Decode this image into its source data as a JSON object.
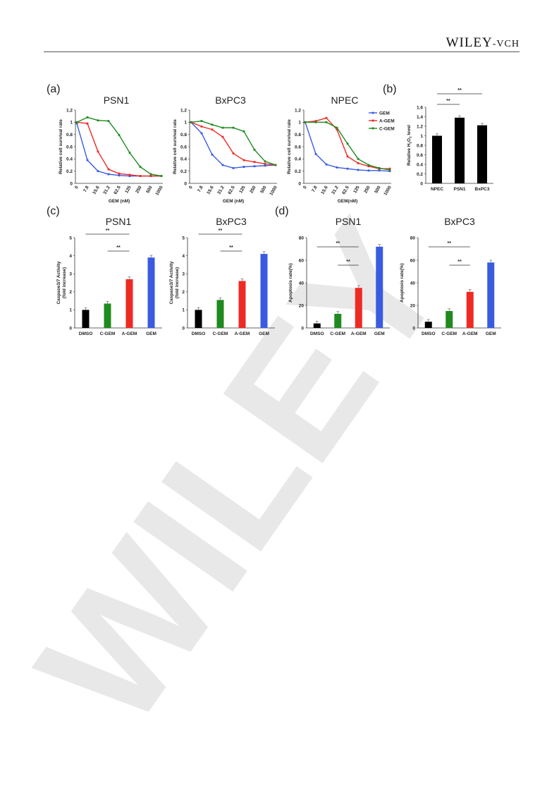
{
  "header": {
    "logo_main": "WILEY",
    "logo_suffix": "-VCH"
  },
  "panels": [
    {
      "letter": "(a)"
    },
    {
      "letter": "(b)"
    },
    {
      "letter": "(c)"
    },
    {
      "letter": "(d)"
    }
  ],
  "colors": {
    "GEM": "#3a5be0",
    "A-GEM": "#ee2a24",
    "C-GEM": "#1f8a1f",
    "DMSO": "#000000",
    "NPEC": "#000000"
  },
  "chart_data": [
    {
      "id": "a1",
      "type": "line",
      "title": "PSN1",
      "xlabel": "GEM (nM)",
      "ylabel": "Relative cell survival rate",
      "categories": [
        "0",
        "7.8",
        "15.6",
        "31.2",
        "62.5",
        "125",
        "250",
        "500",
        "1000"
      ],
      "ylim": [
        0,
        1.2
      ],
      "yticks": [
        "0",
        "0.2",
        "0.4",
        "0.6",
        "0.8",
        "1",
        "1.2"
      ],
      "series": [
        {
          "name": "GEM",
          "values": [
            0.98,
            0.38,
            0.2,
            0.15,
            0.13,
            0.12,
            0.12,
            0.12,
            0.12
          ]
        },
        {
          "name": "A-GEM",
          "values": [
            1.0,
            0.98,
            0.52,
            0.23,
            0.16,
            0.14,
            0.12,
            0.12,
            0.12
          ]
        },
        {
          "name": "C-GEM",
          "values": [
            1.0,
            1.08,
            1.03,
            1.02,
            0.79,
            0.5,
            0.27,
            0.15,
            0.12
          ]
        }
      ]
    },
    {
      "id": "a2",
      "type": "line",
      "title": "BxPC3",
      "xlabel": "GEM (nM)",
      "ylabel": "Relative cell survival rate",
      "categories": [
        "0",
        "7.8",
        "15.6",
        "31.2",
        "62.5",
        "125",
        "250",
        "500",
        "1000"
      ],
      "ylim": [
        0,
        1.2
      ],
      "yticks": [
        "0",
        "0.2",
        "0.4",
        "0.6",
        "0.8",
        "1",
        "1.2"
      ],
      "series": [
        {
          "name": "GEM",
          "values": [
            1.0,
            0.82,
            0.47,
            0.3,
            0.25,
            0.27,
            0.28,
            0.29,
            0.3
          ]
        },
        {
          "name": "A-GEM",
          "values": [
            1.0,
            0.93,
            0.88,
            0.76,
            0.49,
            0.38,
            0.35,
            0.32,
            0.3
          ]
        },
        {
          "name": "C-GEM",
          "values": [
            1.0,
            1.02,
            0.96,
            0.91,
            0.91,
            0.85,
            0.55,
            0.36,
            0.3
          ]
        }
      ]
    },
    {
      "id": "a3",
      "type": "line",
      "title": "NPEC",
      "xlabel": "GEM(nM)",
      "ylabel": "Relative cell survival rate",
      "categories": [
        "0",
        "7.8",
        "15.6",
        "31.2",
        "62.5",
        "125",
        "250",
        "500",
        "1000"
      ],
      "ylim": [
        0,
        1.2
      ],
      "yticks": [
        "0",
        "0.2",
        "0.4",
        "0.6",
        "0.8",
        "1",
        "1.2"
      ],
      "legend": "top-right",
      "series": [
        {
          "name": "GEM",
          "values": [
            1.0,
            0.48,
            0.31,
            0.26,
            0.24,
            0.22,
            0.21,
            0.21,
            0.2
          ]
        },
        {
          "name": "A-GEM",
          "values": [
            1.0,
            1.02,
            1.07,
            0.88,
            0.44,
            0.33,
            0.28,
            0.24,
            0.24
          ]
        },
        {
          "name": "C-GEM",
          "values": [
            1.0,
            1.0,
            1.0,
            0.91,
            0.65,
            0.4,
            0.3,
            0.25,
            0.22
          ]
        }
      ]
    },
    {
      "id": "b",
      "type": "bar",
      "title": "",
      "xlabel": "",
      "ylabel": "Relative H₂O₂ level",
      "categories": [
        "NPEC",
        "PSN1",
        "BxPC3"
      ],
      "values": [
        1.0,
        1.38,
        1.22
      ],
      "ylim": [
        0,
        1.6
      ],
      "yticks": [
        "0",
        "0.2",
        "0.4",
        "0.6",
        "0.8",
        "1",
        "1.2",
        "1.4",
        "1.6"
      ],
      "significance": [
        {
          "between": [
            "NPEC",
            "BxPC3"
          ],
          "label": "**"
        },
        {
          "between": [
            "NPEC",
            "PSN1"
          ],
          "label": "**"
        }
      ]
    },
    {
      "id": "c1",
      "type": "bar",
      "title": "PSN1",
      "xlabel": "",
      "ylabel": "Caspase3/7 Activity",
      "ylabel2": "(fold increase)",
      "categories": [
        "DMSO",
        "C-GEM",
        "A-GEM",
        "GEM"
      ],
      "values": [
        1.0,
        1.35,
        2.7,
        3.9
      ],
      "ylim": [
        0,
        5
      ],
      "yticks": [
        "0",
        "1",
        "2",
        "3",
        "4",
        "5"
      ],
      "significance": [
        {
          "between": [
            "DMSO",
            "A-GEM"
          ],
          "label": "**"
        },
        {
          "between": [
            "C-GEM",
            "A-GEM"
          ],
          "label": "**"
        }
      ]
    },
    {
      "id": "c2",
      "type": "bar",
      "title": "BxPC3",
      "xlabel": "",
      "ylabel": "Caspase3/7 Activity",
      "ylabel2": "(fold increase)",
      "categories": [
        "DMSO",
        "C-GEM",
        "A-GEM",
        "GEM"
      ],
      "values": [
        1.0,
        1.55,
        2.6,
        4.1
      ],
      "ylim": [
        0,
        5
      ],
      "yticks": [
        "0",
        "1",
        "2",
        "3",
        "4",
        "5"
      ],
      "significance": [
        {
          "between": [
            "DMSO",
            "A-GEM"
          ],
          "label": "**"
        },
        {
          "between": [
            "C-GEM",
            "A-GEM"
          ],
          "label": "**"
        }
      ]
    },
    {
      "id": "d1",
      "type": "bar",
      "title": "PSN1",
      "xlabel": "",
      "ylabel": "Apoptosis rate(%)",
      "categories": [
        "DMSO",
        "C-GEM",
        "A-GEM",
        "GEM"
      ],
      "values": [
        4,
        12.5,
        35.5,
        72
      ],
      "ylim": [
        0,
        80
      ],
      "yticks": [
        "0",
        "20",
        "40",
        "60",
        "80"
      ],
      "significance": [
        {
          "between": [
            "DMSO",
            "A-GEM"
          ],
          "label": "**"
        },
        {
          "between": [
            "C-GEM",
            "A-GEM"
          ],
          "label": "**"
        }
      ]
    },
    {
      "id": "d2",
      "type": "bar",
      "title": "BxPC3",
      "xlabel": "",
      "ylabel": "Apoptosis rate(%)",
      "categories": [
        "DMSO",
        "C-GEM",
        "A-GEM",
        "GEM"
      ],
      "values": [
        5.5,
        15,
        32,
        58
      ],
      "ylim": [
        0,
        80
      ],
      "yticks": [
        "0",
        "20",
        "40",
        "60",
        "80"
      ],
      "significance": [
        {
          "between": [
            "DMSO",
            "A-GEM"
          ],
          "label": "**"
        },
        {
          "between": [
            "C-GEM",
            "A-GEM"
          ],
          "label": "**"
        }
      ]
    }
  ]
}
